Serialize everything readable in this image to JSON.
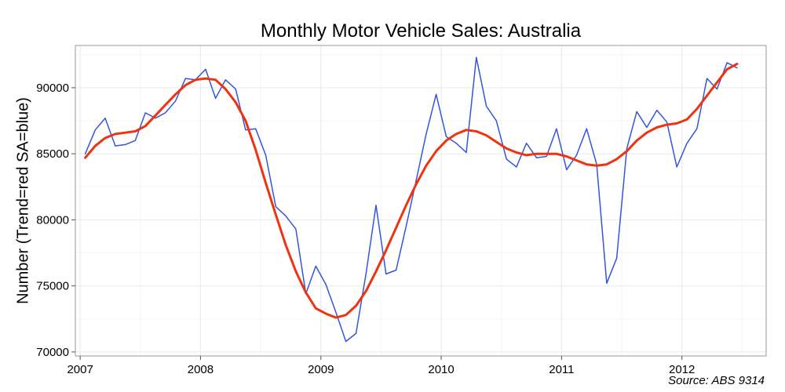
{
  "chart_data": {
    "type": "line",
    "title": "Monthly Motor Vehicle Sales: Australia",
    "ylabel": "Number (Trend=red SA=blue)",
    "xlabel": "",
    "source": "Source: ABS 9314",
    "xlim": [
      2006.96,
      2012.7
    ],
    "ylim": [
      69700,
      93200
    ],
    "x_ticks": [
      2007,
      2008,
      2009,
      2010,
      2011,
      2012
    ],
    "x_tick_labels": [
      "2007",
      "2008",
      "2009",
      "2010",
      "2011",
      "2012"
    ],
    "y_ticks": [
      70000,
      75000,
      80000,
      85000,
      90000
    ],
    "y_tick_labels": [
      "70000",
      "75000",
      "80000",
      "85000",
      "90000"
    ],
    "grid": true,
    "colors": {
      "trend": "#ee3311",
      "sa": "#3355dd",
      "grid": "#ebebeb",
      "minor_grid": "#f5f5f5",
      "frame": "#999999"
    },
    "series": [
      {
        "key": "sa",
        "x": [
          2007.042,
          2007.125,
          2007.208,
          2007.292,
          2007.375,
          2007.458,
          2007.542,
          2007.625,
          2007.708,
          2007.792,
          2007.875,
          2007.958,
          2008.042,
          2008.125,
          2008.208,
          2008.292,
          2008.375,
          2008.458,
          2008.542,
          2008.625,
          2008.708,
          2008.792,
          2008.875,
          2008.958,
          2009.042,
          2009.125,
          2009.208,
          2009.292,
          2009.375,
          2009.458,
          2009.542,
          2009.625,
          2009.708,
          2009.792,
          2009.875,
          2009.958,
          2010.042,
          2010.125,
          2010.208,
          2010.292,
          2010.375,
          2010.458,
          2010.542,
          2010.625,
          2010.708,
          2010.792,
          2010.875,
          2010.958,
          2011.042,
          2011.125,
          2011.208,
          2011.292,
          2011.375,
          2011.458,
          2011.542,
          2011.625,
          2011.708,
          2011.792,
          2011.875,
          2011.958,
          2012.042,
          2012.125,
          2012.208,
          2012.292,
          2012.375,
          2012.458
        ],
        "values": [
          85000,
          86800,
          87700,
          85600,
          85700,
          86000,
          88100,
          87700,
          88100,
          89000,
          90700,
          90600,
          91400,
          89200,
          90600,
          89900,
          86800,
          86900,
          84900,
          81000,
          80300,
          79300,
          74400,
          76500,
          75100,
          73000,
          70800,
          71400,
          75900,
          81100,
          75900,
          76200,
          79500,
          83000,
          86500,
          89500,
          86300,
          85800,
          85100,
          92300,
          88600,
          87500,
          84600,
          84000,
          85800,
          84700,
          84800,
          86900,
          83800,
          84900,
          86900,
          84200,
          75200,
          77100,
          85400,
          88200,
          87000,
          88300,
          87400,
          84000,
          85800,
          86900,
          90700,
          89900,
          91900,
          91500
        ]
      },
      {
        "key": "trend",
        "x": [
          2007.042,
          2007.125,
          2007.208,
          2007.292,
          2007.375,
          2007.458,
          2007.542,
          2007.625,
          2007.708,
          2007.792,
          2007.875,
          2007.958,
          2008.042,
          2008.125,
          2008.208,
          2008.292,
          2008.375,
          2008.458,
          2008.542,
          2008.625,
          2008.708,
          2008.792,
          2008.875,
          2008.958,
          2009.042,
          2009.125,
          2009.208,
          2009.292,
          2009.375,
          2009.458,
          2009.542,
          2009.625,
          2009.708,
          2009.792,
          2009.875,
          2009.958,
          2010.042,
          2010.125,
          2010.208,
          2010.292,
          2010.375,
          2010.458,
          2010.542,
          2010.625,
          2010.708,
          2010.792,
          2010.875,
          2010.958,
          2011.042,
          2011.125,
          2011.208,
          2011.292,
          2011.375,
          2011.458,
          2011.542,
          2011.625,
          2011.708,
          2011.792,
          2011.875,
          2011.958,
          2012.042,
          2012.125,
          2012.208,
          2012.292,
          2012.375,
          2012.458
        ],
        "values": [
          84700,
          85600,
          86200,
          86500,
          86600,
          86700,
          87100,
          87900,
          88700,
          89500,
          90200,
          90600,
          90700,
          90600,
          89900,
          88900,
          87500,
          85300,
          82800,
          80400,
          78100,
          76100,
          74500,
          73300,
          72900,
          72600,
          72800,
          73500,
          74600,
          76100,
          77700,
          79400,
          81100,
          82700,
          84100,
          85200,
          86000,
          86500,
          86800,
          86700,
          86400,
          85900,
          85400,
          85100,
          84900,
          85000,
          85000,
          85000,
          84800,
          84500,
          84200,
          84100,
          84200,
          84600,
          85200,
          86000,
          86600,
          87000,
          87200,
          87300,
          87600,
          88400,
          89400,
          90400,
          91400,
          91800
        ]
      }
    ]
  }
}
